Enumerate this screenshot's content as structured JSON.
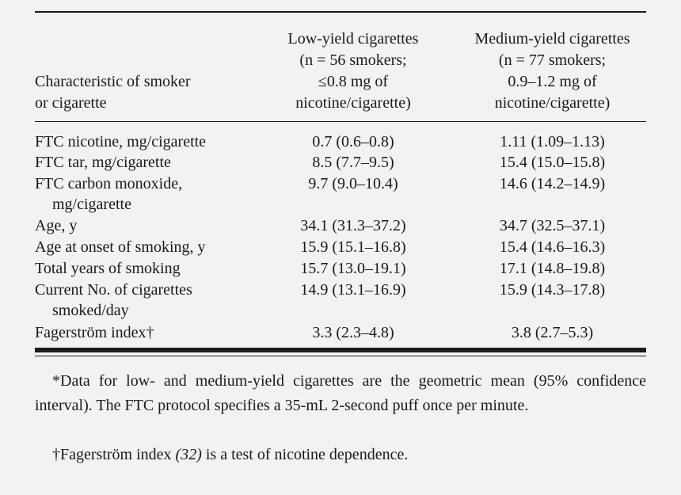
{
  "table": {
    "header": {
      "col1": [
        "Characteristic of smoker",
        "or cigarette"
      ],
      "col2": [
        "Low-yield cigarettes",
        "(n  =  56 smokers;",
        "≤0.8 mg of",
        "nicotine/cigarette)"
      ],
      "col3": [
        "Medium-yield cigarettes",
        "(n  =  77 smokers;",
        "0.9–1.2 mg of",
        "nicotine/cigarette)"
      ]
    },
    "rows": [
      {
        "label": "FTC nicotine, mg/cigarette",
        "label2": "",
        "low": "0.7 (0.6–0.8)",
        "medium": "1.11 (1.09–1.13)"
      },
      {
        "label": "FTC tar, mg/cigarette",
        "label2": "",
        "low": "8.5 (7.7–9.5)",
        "medium": "15.4 (15.0–15.8)"
      },
      {
        "label": "FTC carbon monoxide,",
        "label2": "mg/cigarette",
        "low": "9.7 (9.0–10.4)",
        "medium": "14.6 (14.2–14.9)"
      },
      {
        "label": "Age, y",
        "label2": "",
        "low": "34.1 (31.3–37.2)",
        "medium": "34.7 (32.5–37.1)"
      },
      {
        "label": "Age at onset of smoking, y",
        "label2": "",
        "low": "15.9 (15.1–16.8)",
        "medium": "15.4 (14.6–16.3)"
      },
      {
        "label": "Total years of smoking",
        "label2": "",
        "low": "15.7 (13.0–19.1)",
        "medium": "17.1 (14.8–19.8)"
      },
      {
        "label": "Current No. of cigarettes",
        "label2": "smoked/day",
        "low": "14.9 (13.1–16.9)",
        "medium": "15.9 (14.3–17.8)"
      },
      {
        "label": "Fagerström index†",
        "label2": "",
        "low": "3.3 (2.3–4.8)",
        "medium": "3.8 (2.7–5.3)"
      }
    ]
  },
  "footnotes": {
    "note1": "*Data for low- and medium-yield cigarettes are the geometric mean (95% confidence interval). The FTC protocol specifies a 35-mL 2-second puff once per minute.",
    "note2_before": "†Fagerström index ",
    "note2_ref": "(32)",
    "note2_after": " is a test of nicotine dependence."
  }
}
